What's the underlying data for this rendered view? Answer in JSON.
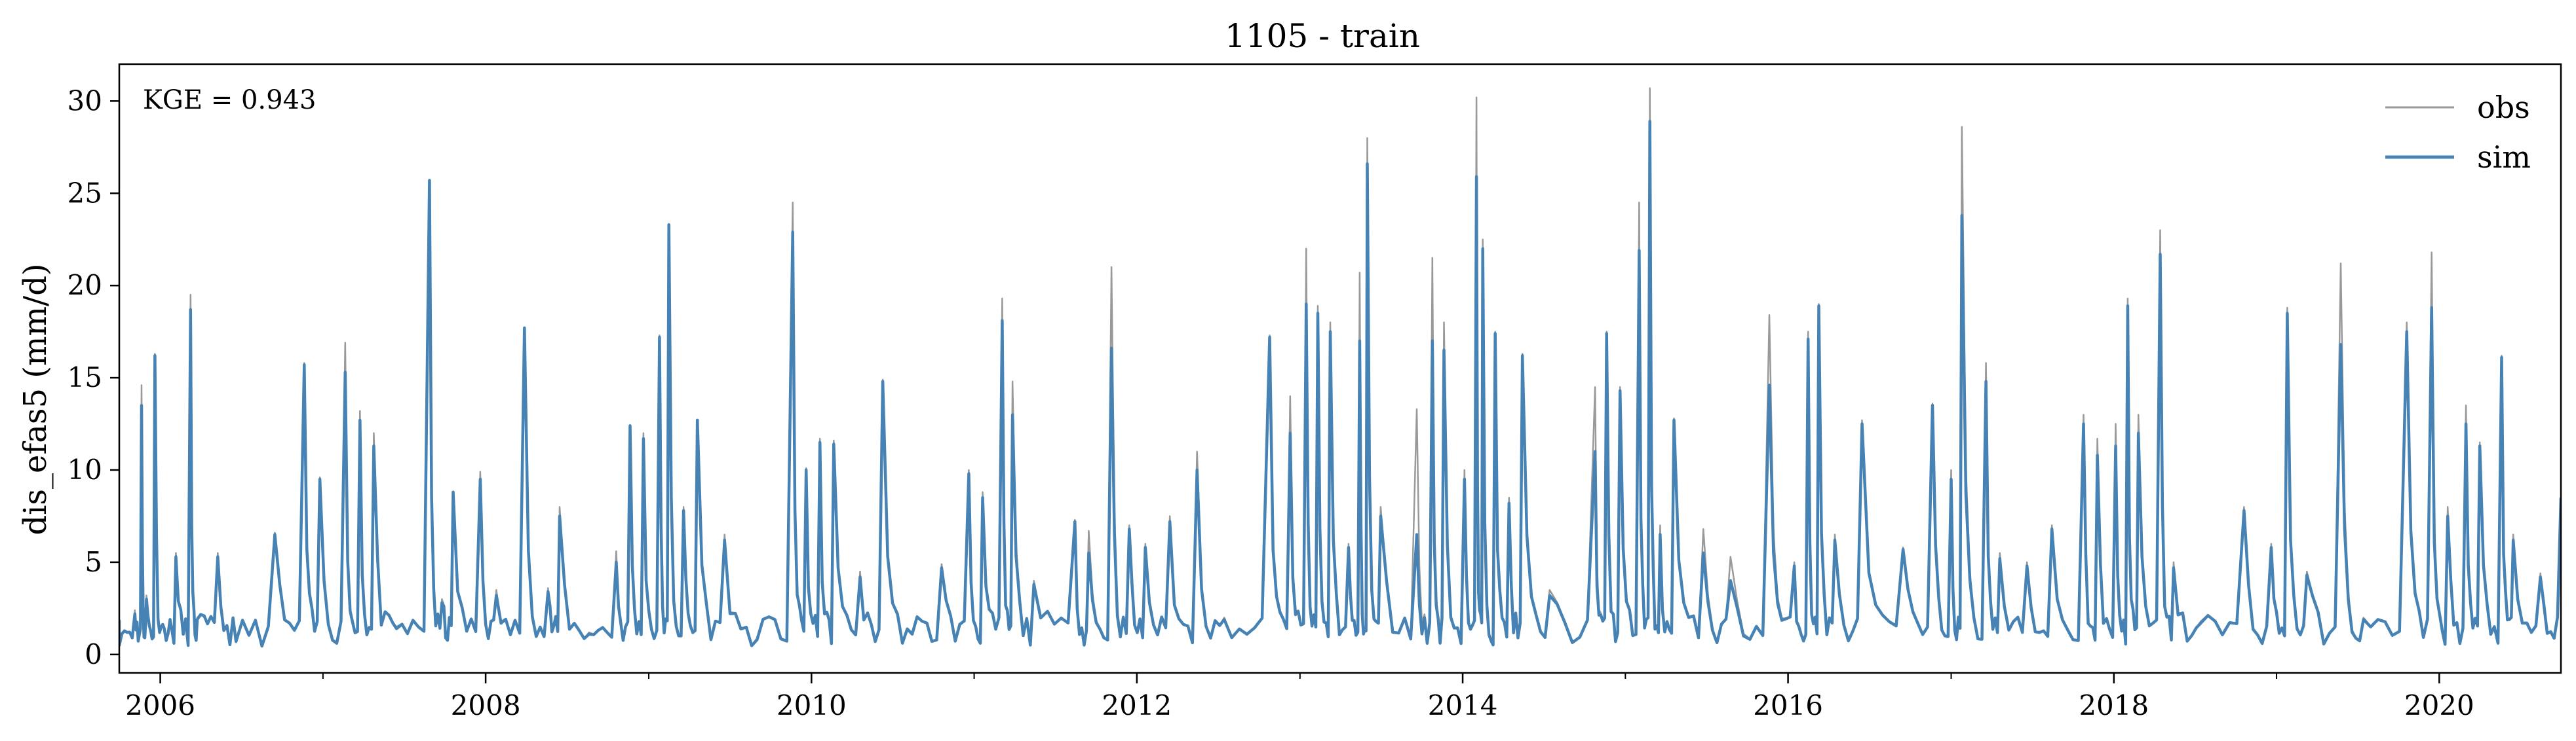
{
  "chart_data": {
    "type": "line",
    "title": "1105 - train",
    "xlabel": "",
    "ylabel": "dis_efas5 (mm/d)",
    "xlim": [
      "2005-10-01",
      "2020-09-30"
    ],
    "ylim": [
      -1,
      32
    ],
    "x_ticks": [
      "2006",
      "2008",
      "2010",
      "2012",
      "2014",
      "2016",
      "2018",
      "2020"
    ],
    "y_ticks": [
      "0",
      "5",
      "10",
      "15",
      "20",
      "25",
      "30"
    ],
    "legend_position": "top-right",
    "grid": false,
    "annotation": "KGE = 0.943",
    "series": [
      {
        "name": "obs",
        "color": "#999999",
        "points": [
          [
            "2005-10-01",
            0.6
          ],
          [
            "2005-11-05",
            2.4
          ],
          [
            "2005-11-20",
            14.6
          ],
          [
            "2005-12-01",
            3.2
          ],
          [
            "2005-12-20",
            16.3
          ],
          [
            "2006-01-10",
            1.5
          ],
          [
            "2006-02-05",
            5.5
          ],
          [
            "2006-03-10",
            19.5
          ],
          [
            "2006-03-25",
            2.0
          ],
          [
            "2006-05-10",
            5.5
          ],
          [
            "2006-06-20",
            0.8
          ],
          [
            "2006-09-15",
            6.6
          ],
          [
            "2006-11-20",
            15.8
          ],
          [
            "2006-12-25",
            9.6
          ],
          [
            "2007-02-20",
            16.9
          ],
          [
            "2007-03-25",
            13.2
          ],
          [
            "2007-04-25",
            12.0
          ],
          [
            "2007-06-15",
            1.5
          ],
          [
            "2007-08-28",
            25.7
          ],
          [
            "2007-09-25",
            3.0
          ],
          [
            "2007-10-20",
            8.8
          ],
          [
            "2007-12-20",
            9.9
          ],
          [
            "2008-01-25",
            3.5
          ],
          [
            "2008-03-28",
            17.7
          ],
          [
            "2008-05-20",
            3.6
          ],
          [
            "2008-06-15",
            8.0
          ],
          [
            "2008-08-20",
            1.2
          ],
          [
            "2008-10-20",
            5.6
          ],
          [
            "2008-11-20",
            12.4
          ],
          [
            "2008-12-20",
            12.0
          ],
          [
            "2009-01-25",
            17.3
          ],
          [
            "2009-02-15",
            23.3
          ],
          [
            "2009-03-20",
            8.0
          ],
          [
            "2009-04-20",
            12.7
          ],
          [
            "2009-06-20",
            6.5
          ],
          [
            "2009-09-01",
            0.9
          ],
          [
            "2009-11-20",
            24.5
          ],
          [
            "2009-12-20",
            10.1
          ],
          [
            "2010-01-20",
            11.7
          ],
          [
            "2010-02-20",
            11.6
          ],
          [
            "2010-04-20",
            4.5
          ],
          [
            "2010-06-10",
            14.9
          ],
          [
            "2010-08-15",
            1.2
          ],
          [
            "2010-10-20",
            4.9
          ],
          [
            "2010-12-20",
            10.0
          ],
          [
            "2011-01-20",
            8.8
          ],
          [
            "2011-03-05",
            19.3
          ],
          [
            "2011-03-28",
            14.8
          ],
          [
            "2011-05-15",
            4.0
          ],
          [
            "2011-08-15",
            7.3
          ],
          [
            "2011-09-15",
            6.7
          ],
          [
            "2011-11-05",
            21.0
          ],
          [
            "2011-12-15",
            7.0
          ],
          [
            "2012-01-20",
            6.0
          ],
          [
            "2012-03-15",
            7.5
          ],
          [
            "2012-05-15",
            11.0
          ],
          [
            "2012-07-15",
            2.0
          ],
          [
            "2012-10-25",
            17.3
          ],
          [
            "2012-12-10",
            14.0
          ],
          [
            "2013-01-15",
            22.0
          ],
          [
            "2013-02-10",
            18.9
          ],
          [
            "2013-03-10",
            18.0
          ],
          [
            "2013-04-20",
            6.0
          ],
          [
            "2013-05-15",
            20.7
          ],
          [
            "2013-06-01",
            28.0
          ],
          [
            "2013-07-01",
            8.0
          ],
          [
            "2013-09-20",
            13.3
          ],
          [
            "2013-10-25",
            21.5
          ],
          [
            "2013-11-20",
            18.0
          ],
          [
            "2014-01-05",
            10.0
          ],
          [
            "2014-02-01",
            30.2
          ],
          [
            "2014-02-15",
            22.5
          ],
          [
            "2014-03-15",
            17.5
          ],
          [
            "2014-04-15",
            8.5
          ],
          [
            "2014-05-15",
            16.3
          ],
          [
            "2014-07-15",
            3.5
          ],
          [
            "2014-10-25",
            14.5
          ],
          [
            "2014-11-20",
            17.5
          ],
          [
            "2014-12-20",
            14.5
          ],
          [
            "2015-02-01",
            24.5
          ],
          [
            "2015-02-25",
            30.7
          ],
          [
            "2015-03-20",
            7.0
          ],
          [
            "2015-04-20",
            12.8
          ],
          [
            "2015-06-25",
            6.8
          ],
          [
            "2015-08-25",
            5.3
          ],
          [
            "2015-11-20",
            18.4
          ],
          [
            "2016-01-15",
            5.0
          ],
          [
            "2016-02-15",
            17.5
          ],
          [
            "2016-03-10",
            19.0
          ],
          [
            "2016-04-15",
            6.5
          ],
          [
            "2016-06-15",
            12.7
          ],
          [
            "2016-09-15",
            5.8
          ],
          [
            "2016-11-20",
            13.6
          ],
          [
            "2017-01-01",
            10.0
          ],
          [
            "2017-01-25",
            28.6
          ],
          [
            "2017-03-20",
            15.8
          ],
          [
            "2017-04-20",
            5.5
          ],
          [
            "2017-06-20",
            5.0
          ],
          [
            "2017-08-15",
            7.0
          ],
          [
            "2017-10-25",
            13.0
          ],
          [
            "2017-11-25",
            11.7
          ],
          [
            "2018-01-05",
            12.5
          ],
          [
            "2018-02-01",
            19.3
          ],
          [
            "2018-02-25",
            13.0
          ],
          [
            "2018-04-15",
            23.0
          ],
          [
            "2018-05-15",
            5.0
          ],
          [
            "2018-07-15",
            1.8
          ],
          [
            "2018-10-20",
            8.0
          ],
          [
            "2018-12-20",
            6.0
          ],
          [
            "2019-01-25",
            18.8
          ],
          [
            "2019-03-10",
            4.5
          ],
          [
            "2019-05-25",
            21.2
          ],
          [
            "2019-07-15",
            2.0
          ],
          [
            "2019-10-20",
            18.0
          ],
          [
            "2019-12-15",
            21.8
          ],
          [
            "2020-01-20",
            8.0
          ],
          [
            "2020-03-01",
            13.5
          ],
          [
            "2020-04-01",
            11.5
          ],
          [
            "2020-05-20",
            16.2
          ],
          [
            "2020-06-15",
            6.5
          ],
          [
            "2020-08-15",
            4.4
          ],
          [
            "2020-09-30",
            8.5
          ]
        ]
      },
      {
        "name": "sim",
        "color": "#4682b4",
        "points": [
          [
            "2005-10-01",
            0.5
          ],
          [
            "2005-11-05",
            2.2
          ],
          [
            "2005-11-20",
            13.5
          ],
          [
            "2005-12-01",
            3.0
          ],
          [
            "2005-12-20",
            16.2
          ],
          [
            "2006-01-10",
            1.4
          ],
          [
            "2006-02-05",
            5.3
          ],
          [
            "2006-03-10",
            18.7
          ],
          [
            "2006-03-25",
            1.9
          ],
          [
            "2006-05-10",
            5.3
          ],
          [
            "2006-06-20",
            0.7
          ],
          [
            "2006-09-15",
            6.5
          ],
          [
            "2006-11-20",
            15.7
          ],
          [
            "2006-12-25",
            9.5
          ],
          [
            "2007-02-20",
            15.3
          ],
          [
            "2007-03-25",
            12.7
          ],
          [
            "2007-04-25",
            11.3
          ],
          [
            "2007-06-15",
            1.4
          ],
          [
            "2007-08-28",
            25.7
          ],
          [
            "2007-09-25",
            2.8
          ],
          [
            "2007-10-20",
            8.8
          ],
          [
            "2007-12-20",
            9.5
          ],
          [
            "2008-01-25",
            3.2
          ],
          [
            "2008-03-28",
            17.7
          ],
          [
            "2008-05-20",
            3.4
          ],
          [
            "2008-06-15",
            7.5
          ],
          [
            "2008-08-20",
            1.1
          ],
          [
            "2008-10-20",
            5.0
          ],
          [
            "2008-11-20",
            12.4
          ],
          [
            "2008-12-20",
            11.7
          ],
          [
            "2009-01-25",
            17.2
          ],
          [
            "2009-02-15",
            23.3
          ],
          [
            "2009-03-20",
            7.8
          ],
          [
            "2009-04-20",
            12.7
          ],
          [
            "2009-06-20",
            6.2
          ],
          [
            "2009-09-01",
            0.8
          ],
          [
            "2009-11-20",
            22.9
          ],
          [
            "2009-12-20",
            10.0
          ],
          [
            "2010-01-20",
            11.5
          ],
          [
            "2010-02-20",
            11.4
          ],
          [
            "2010-04-20",
            4.2
          ],
          [
            "2010-06-10",
            14.8
          ],
          [
            "2010-08-15",
            1.1
          ],
          [
            "2010-10-20",
            4.7
          ],
          [
            "2010-12-20",
            9.8
          ],
          [
            "2011-01-20",
            8.5
          ],
          [
            "2011-03-05",
            18.1
          ],
          [
            "2011-03-28",
            13.0
          ],
          [
            "2011-05-15",
            3.8
          ],
          [
            "2011-08-15",
            7.2
          ],
          [
            "2011-09-15",
            5.5
          ],
          [
            "2011-11-05",
            16.6
          ],
          [
            "2011-12-15",
            6.8
          ],
          [
            "2012-01-20",
            5.8
          ],
          [
            "2012-03-15",
            7.2
          ],
          [
            "2012-05-15",
            10.0
          ],
          [
            "2012-07-15",
            1.9
          ],
          [
            "2012-10-25",
            17.2
          ],
          [
            "2012-12-10",
            12.0
          ],
          [
            "2013-01-15",
            19.0
          ],
          [
            "2013-02-10",
            18.5
          ],
          [
            "2013-03-10",
            17.5
          ],
          [
            "2013-04-20",
            5.8
          ],
          [
            "2013-05-15",
            17.0
          ],
          [
            "2013-06-01",
            26.6
          ],
          [
            "2013-07-01",
            7.5
          ],
          [
            "2013-09-20",
            6.5
          ],
          [
            "2013-10-25",
            17.0
          ],
          [
            "2013-11-20",
            16.5
          ],
          [
            "2014-01-05",
            9.5
          ],
          [
            "2014-02-01",
            25.9
          ],
          [
            "2014-02-15",
            22.0
          ],
          [
            "2014-03-15",
            17.4
          ],
          [
            "2014-04-15",
            8.2
          ],
          [
            "2014-05-15",
            16.2
          ],
          [
            "2014-07-15",
            3.2
          ],
          [
            "2014-10-25",
            11.0
          ],
          [
            "2014-11-20",
            17.4
          ],
          [
            "2014-12-20",
            14.3
          ],
          [
            "2015-02-01",
            21.9
          ],
          [
            "2015-02-25",
            28.9
          ],
          [
            "2015-03-20",
            6.5
          ],
          [
            "2015-04-20",
            12.7
          ],
          [
            "2015-06-25",
            5.5
          ],
          [
            "2015-08-25",
            4.0
          ],
          [
            "2015-11-20",
            14.6
          ],
          [
            "2016-01-15",
            4.8
          ],
          [
            "2016-02-15",
            17.1
          ],
          [
            "2016-03-10",
            18.9
          ],
          [
            "2016-04-15",
            6.2
          ],
          [
            "2016-06-15",
            12.5
          ],
          [
            "2016-09-15",
            5.7
          ],
          [
            "2016-11-20",
            13.5
          ],
          [
            "2017-01-01",
            9.5
          ],
          [
            "2017-01-25",
            23.8
          ],
          [
            "2017-03-20",
            14.8
          ],
          [
            "2017-04-20",
            5.2
          ],
          [
            "2017-06-20",
            4.8
          ],
          [
            "2017-08-15",
            6.8
          ],
          [
            "2017-10-25",
            12.5
          ],
          [
            "2017-11-25",
            10.8
          ],
          [
            "2018-01-05",
            11.3
          ],
          [
            "2018-02-01",
            18.9
          ],
          [
            "2018-02-25",
            12.0
          ],
          [
            "2018-04-15",
            21.7
          ],
          [
            "2018-05-15",
            4.7
          ],
          [
            "2018-07-15",
            1.7
          ],
          [
            "2018-10-20",
            7.8
          ],
          [
            "2018-12-20",
            5.8
          ],
          [
            "2019-01-25",
            18.5
          ],
          [
            "2019-03-10",
            4.3
          ],
          [
            "2019-05-25",
            16.8
          ],
          [
            "2019-07-15",
            1.9
          ],
          [
            "2019-10-20",
            17.5
          ],
          [
            "2019-12-15",
            18.8
          ],
          [
            "2020-01-20",
            7.5
          ],
          [
            "2020-03-01",
            12.5
          ],
          [
            "2020-04-01",
            11.3
          ],
          [
            "2020-05-20",
            16.1
          ],
          [
            "2020-06-15",
            6.2
          ],
          [
            "2020-08-15",
            4.2
          ],
          [
            "2020-09-30",
            8.5
          ]
        ]
      }
    ]
  }
}
